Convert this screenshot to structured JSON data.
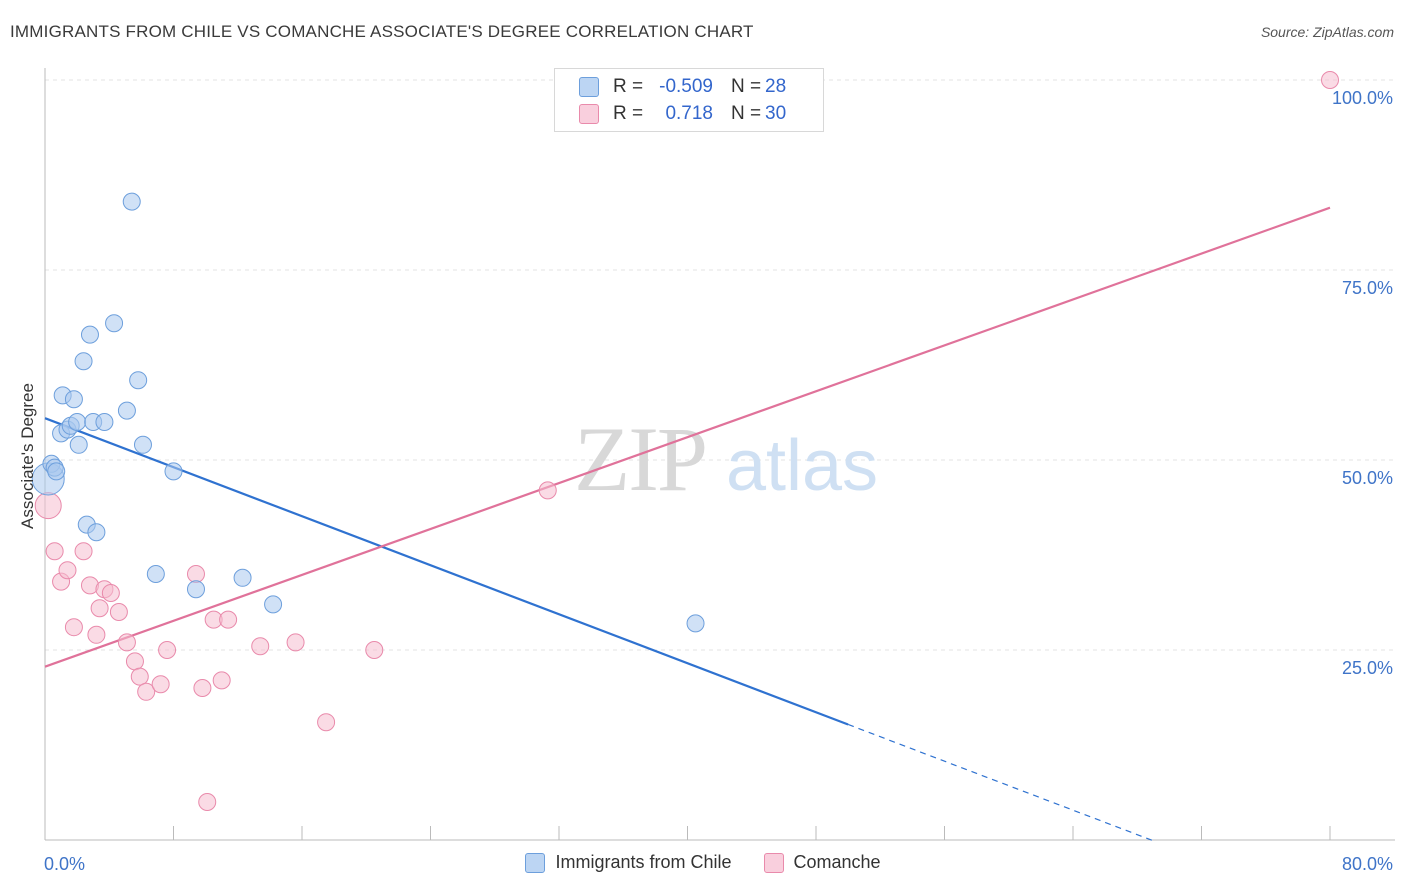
{
  "header": {
    "title": "IMMIGRANTS FROM CHILE VS COMANCHE ASSOCIATE'S DEGREE CORRELATION CHART",
    "source": "Source: ZipAtlas.com"
  },
  "stats": {
    "rows": [
      {
        "r_label": "R =",
        "r_value": "-0.509",
        "n_label": "N =",
        "n_value": "28"
      },
      {
        "r_label": "R =",
        "r_value": "0.718",
        "n_label": "N =",
        "n_value": "30"
      }
    ]
  },
  "legend": {
    "series1": "Immigrants from Chile",
    "series2": "Comanche"
  },
  "watermark": {
    "part1": "ZIP",
    "part2": "atlas"
  },
  "colors": {
    "blue_fill": "#a9c8ef",
    "blue_stroke": "#6d9fdc",
    "blue_line": "#2f72d0",
    "pink_fill": "#f6bdd0",
    "pink_stroke": "#e98aab",
    "pink_line": "#e0729a",
    "axis_text": "#3f74c8"
  },
  "chart_data": {
    "type": "scatter",
    "ylabel": "Associate's Degree",
    "xlim": [
      0,
      80
    ],
    "ylim": [
      0,
      100
    ],
    "x_tick_labels": [
      "0.0%",
      "80.0%"
    ],
    "y_ticks": [
      {
        "value": 25,
        "label": "25.0%"
      },
      {
        "value": 50,
        "label": "50.0%"
      },
      {
        "value": 75,
        "label": "75.0%"
      },
      {
        "value": 100,
        "label": "100.0%"
      }
    ],
    "series": [
      {
        "name": "Immigrants from Chile",
        "points": [
          [
            0.2,
            47.5
          ],
          [
            0.4,
            49.5
          ],
          [
            0.6,
            49.0
          ],
          [
            0.7,
            48.5
          ],
          [
            1.0,
            53.5
          ],
          [
            1.1,
            58.5
          ],
          [
            1.4,
            54.0
          ],
          [
            1.6,
            54.5
          ],
          [
            1.8,
            58.0
          ],
          [
            2.0,
            55.0
          ],
          [
            2.1,
            52.0
          ],
          [
            2.4,
            63.0
          ],
          [
            2.6,
            41.5
          ],
          [
            2.8,
            66.5
          ],
          [
            3.0,
            55.0
          ],
          [
            3.2,
            40.5
          ],
          [
            3.7,
            55.0
          ],
          [
            4.3,
            68.0
          ],
          [
            5.1,
            56.5
          ],
          [
            5.4,
            84.0
          ],
          [
            5.8,
            60.5
          ],
          [
            6.1,
            52.0
          ],
          [
            6.9,
            35.0
          ],
          [
            8.0,
            48.5
          ],
          [
            9.4,
            33.0
          ],
          [
            12.3,
            34.5
          ],
          [
            14.2,
            31.0
          ],
          [
            40.5,
            28.5
          ]
        ],
        "trend": {
          "x": [
            0,
            50
          ],
          "y": [
            55.5,
            15.2
          ],
          "dashed_x": [
            50,
            69
          ],
          "dashed_y": [
            15.2,
            -0.1
          ]
        }
      },
      {
        "name": "Comanche",
        "points": [
          [
            0.2,
            44.0
          ],
          [
            0.6,
            38.0
          ],
          [
            1.0,
            34.0
          ],
          [
            1.4,
            35.5
          ],
          [
            1.8,
            28.0
          ],
          [
            2.4,
            38.0
          ],
          [
            2.8,
            33.5
          ],
          [
            3.2,
            27.0
          ],
          [
            3.4,
            30.5
          ],
          [
            3.7,
            33.0
          ],
          [
            4.1,
            32.5
          ],
          [
            4.6,
            30.0
          ],
          [
            5.1,
            26.0
          ],
          [
            5.6,
            23.5
          ],
          [
            5.9,
            21.5
          ],
          [
            6.3,
            19.5
          ],
          [
            7.2,
            20.5
          ],
          [
            7.6,
            25.0
          ],
          [
            9.4,
            35.0
          ],
          [
            9.8,
            20.0
          ],
          [
            10.1,
            5.0
          ],
          [
            10.5,
            29.0
          ],
          [
            11.0,
            21.0
          ],
          [
            11.4,
            29.0
          ],
          [
            13.4,
            25.5
          ],
          [
            15.6,
            26.0
          ],
          [
            17.5,
            15.5
          ],
          [
            20.5,
            25.0
          ],
          [
            31.3,
            46.0
          ],
          [
            80.0,
            100.0
          ]
        ],
        "trend": {
          "x": [
            0,
            80
          ],
          "y": [
            22.8,
            83.2
          ]
        }
      }
    ]
  }
}
